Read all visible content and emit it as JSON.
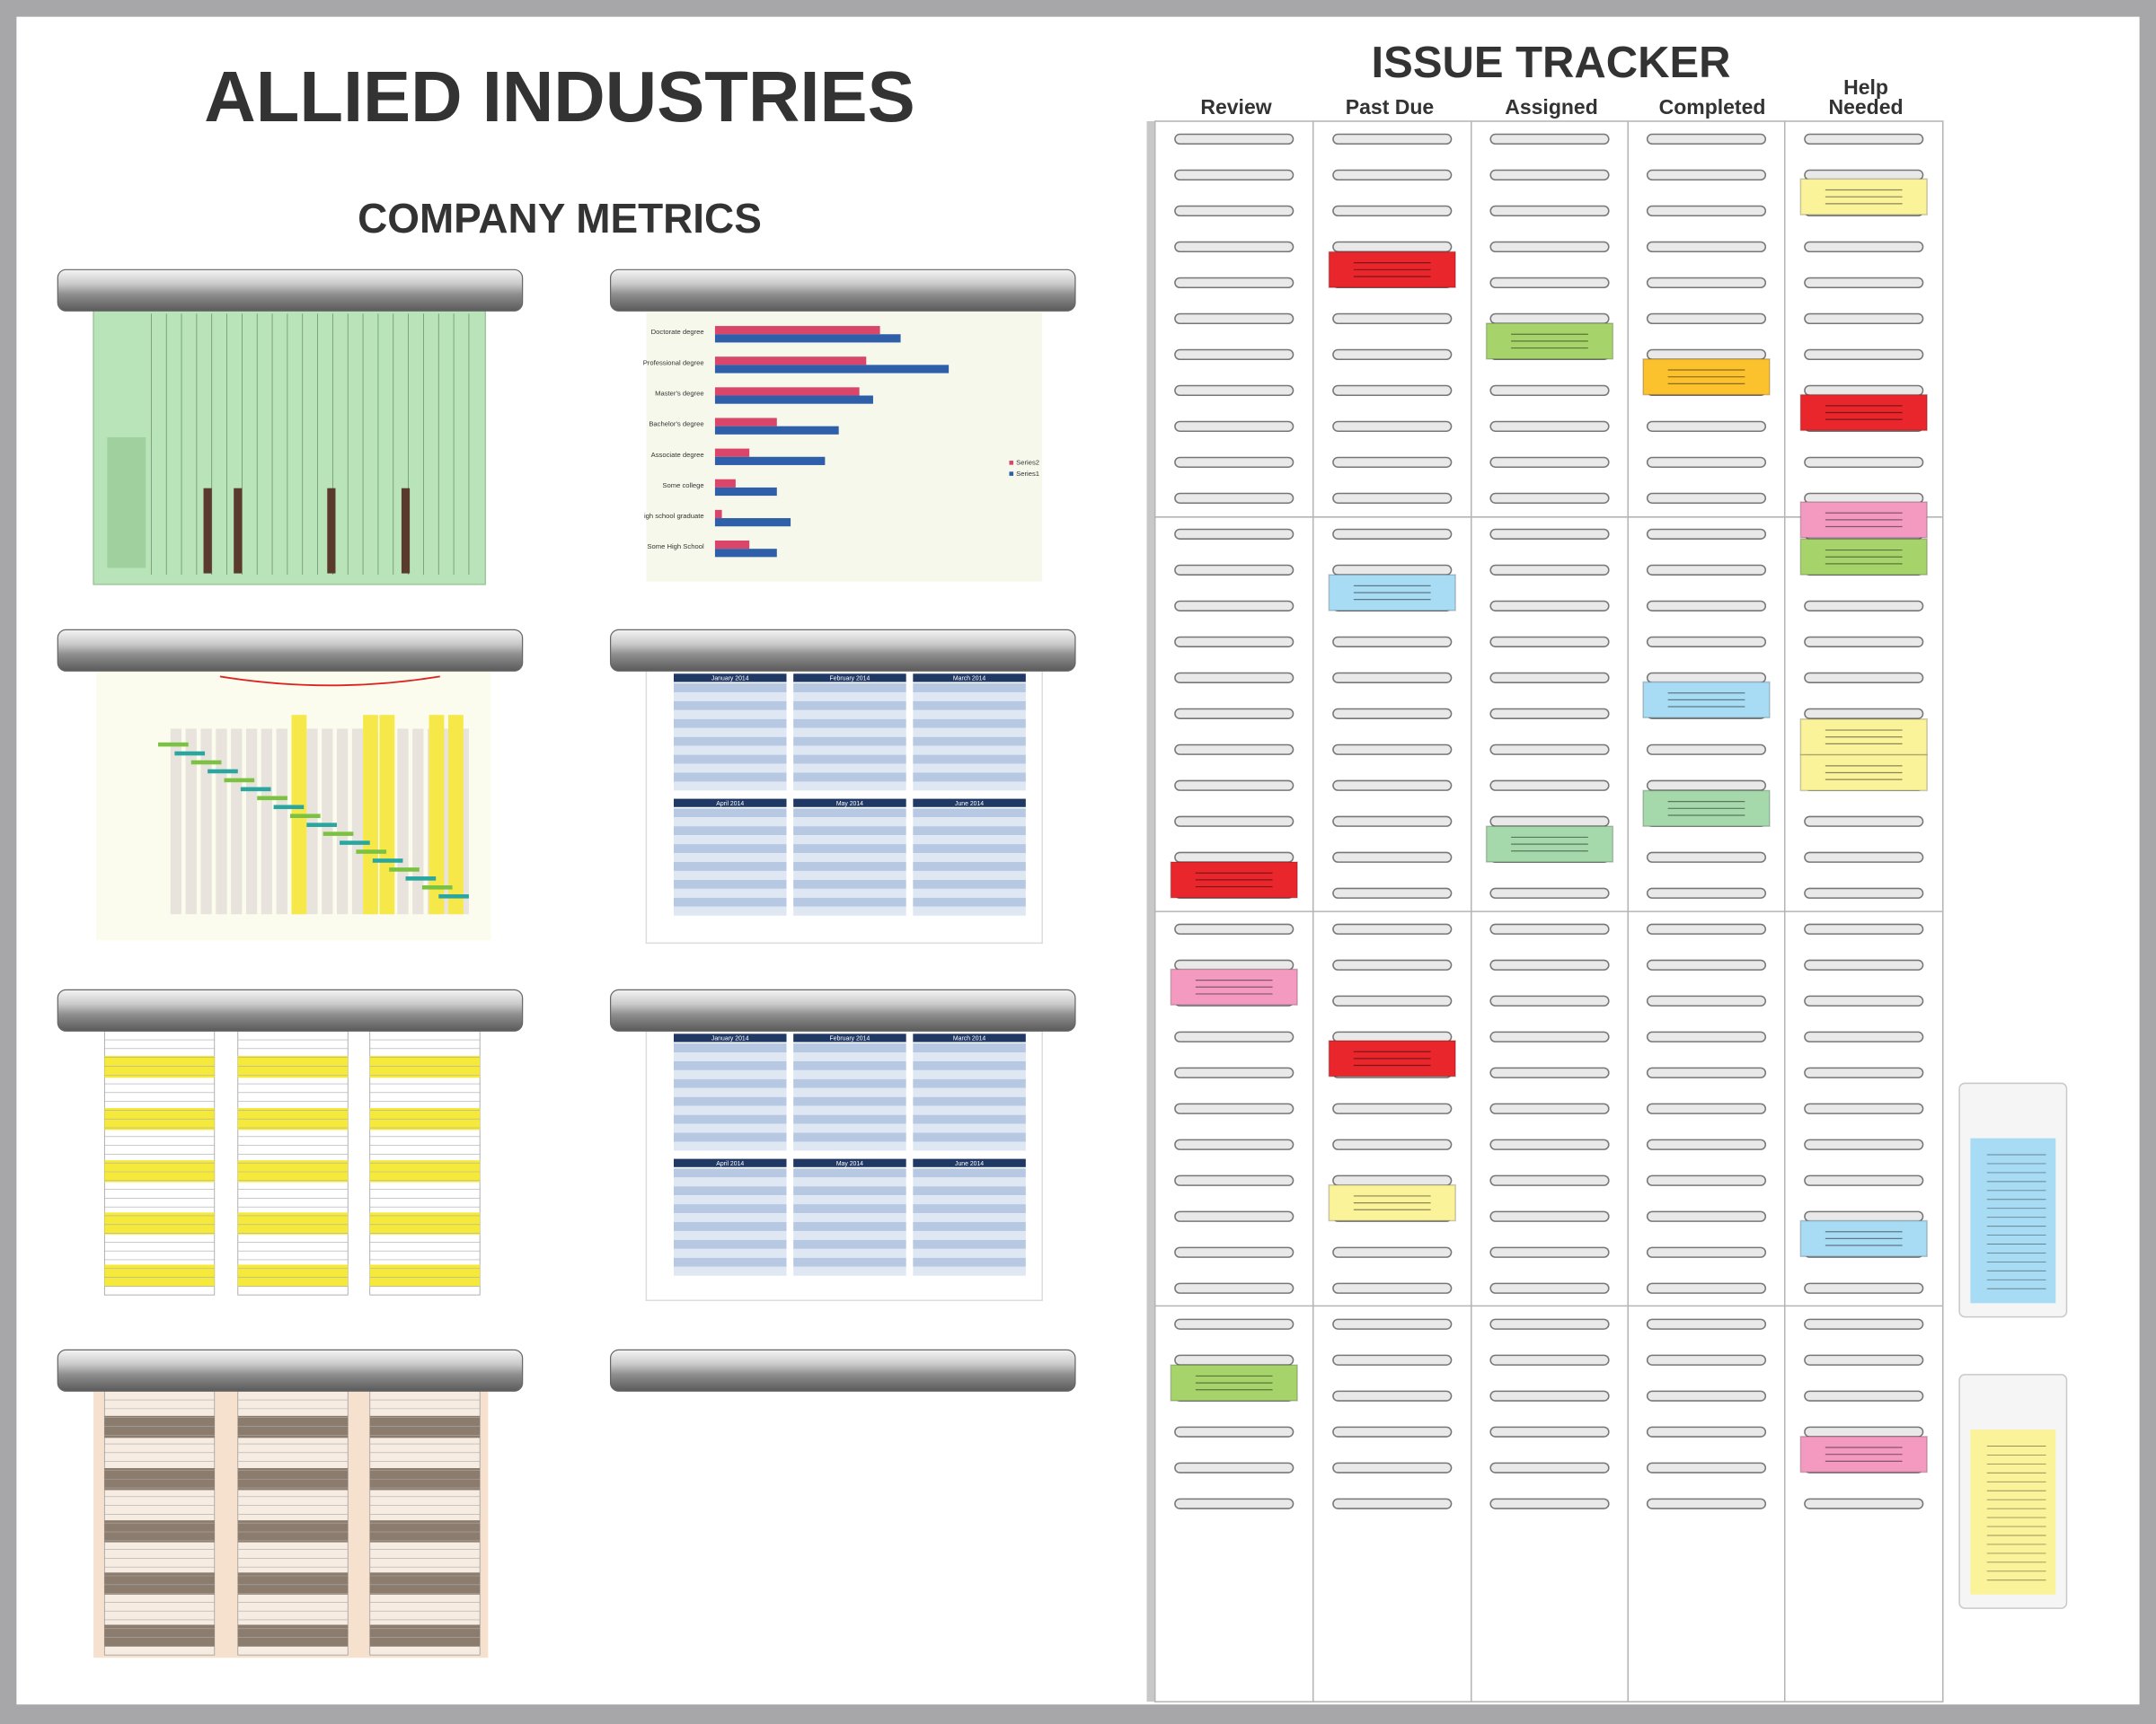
{
  "header": {
    "title": "ALLIED INDUSTRIES",
    "subtitle": "COMPANY METRICS"
  },
  "tracker": {
    "title": "ISSUE TRACKER",
    "columns": [
      "Review",
      "Past Due",
      "Assigned",
      "Completed",
      "Help Needed"
    ]
  },
  "metrics": {
    "bar_chart": {
      "categories": [
        "Doctorate degree",
        "Professional degree",
        "Master's degree",
        "Bachelor's degree",
        "Associate degree",
        "Some college",
        "igh school graduate",
        "Some High School"
      ],
      "series": [
        {
          "name": "Series2",
          "color": "#d9466a",
          "values": [
            120,
            110,
            105,
            45,
            25,
            15,
            5,
            25
          ]
        },
        {
          "name": "Series1",
          "color": "#2f5fa8",
          "values": [
            135,
            170,
            115,
            90,
            80,
            45,
            55,
            45
          ]
        }
      ]
    },
    "calendar": {
      "months": [
        "January 2014",
        "February 2014",
        "March 2014",
        "April 2014",
        "May 2014",
        "June 2014"
      ]
    }
  }
}
